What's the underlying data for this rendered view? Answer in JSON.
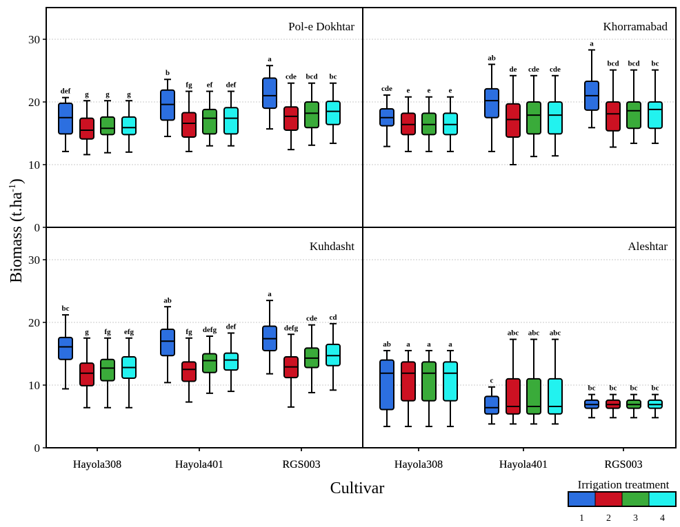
{
  "colors": {
    "t1": "#2c6fe0",
    "t2": "#cc1122",
    "t3": "#3aab3a",
    "t4": "#22f2ef",
    "grid": "#c8c8c8",
    "axis": "#000000"
  },
  "chart_data": {
    "type": "box",
    "xlabel": "Cultivar",
    "ylabel_main": "Biomass (t.ha",
    "ylabel_sup": "-1",
    "ylabel_end": ")",
    "ylim": [
      0,
      35
    ],
    "yticks": [
      0,
      10,
      20,
      30
    ],
    "grid": "horizontal dotted at 10, 20, 30",
    "categories": [
      "Hayola308",
      "Hayola401",
      "RGS003"
    ],
    "legend": {
      "title": "Irrigation treatment",
      "labels": [
        "1",
        "2",
        "3",
        "4"
      ],
      "placement": "bottom-right"
    },
    "panels": [
      {
        "title": "Pol-e Dokhtar",
        "groups": [
          {
            "cultivar": "Hayola308",
            "boxes": [
              {
                "t": 1,
                "min": 12.1,
                "q1": 14.9,
                "med": 17.5,
                "q3": 19.8,
                "max": 20.7,
                "letter": "def"
              },
              {
                "t": 2,
                "min": 11.6,
                "q1": 14.1,
                "med": 15.5,
                "q3": 17.4,
                "max": 20.2,
                "letter": "g"
              },
              {
                "t": 3,
                "min": 11.9,
                "q1": 14.8,
                "med": 15.8,
                "q3": 17.6,
                "max": 20.2,
                "letter": "g"
              },
              {
                "t": 4,
                "min": 12.0,
                "q1": 14.8,
                "med": 15.9,
                "q3": 17.6,
                "max": 20.2,
                "letter": "g"
              }
            ]
          },
          {
            "cultivar": "Hayola401",
            "boxes": [
              {
                "t": 1,
                "min": 14.5,
                "q1": 17.1,
                "med": 19.6,
                "q3": 21.9,
                "max": 23.6,
                "letter": "b"
              },
              {
                "t": 2,
                "min": 12.1,
                "q1": 14.4,
                "med": 16.6,
                "q3": 18.3,
                "max": 21.7,
                "letter": "fg"
              },
              {
                "t": 3,
                "min": 13.0,
                "q1": 14.9,
                "med": 17.4,
                "q3": 18.8,
                "max": 21.7,
                "letter": "ef"
              },
              {
                "t": 4,
                "min": 13.0,
                "q1": 14.9,
                "med": 17.4,
                "q3": 19.1,
                "max": 21.7,
                "letter": "def"
              }
            ]
          },
          {
            "cultivar": "RGS003",
            "boxes": [
              {
                "t": 1,
                "min": 15.7,
                "q1": 19.0,
                "med": 21.0,
                "q3": 23.8,
                "max": 25.8,
                "letter": "a"
              },
              {
                "t": 2,
                "min": 12.4,
                "q1": 15.5,
                "med": 17.7,
                "q3": 19.2,
                "max": 23.0,
                "letter": "cde"
              },
              {
                "t": 3,
                "min": 13.1,
                "q1": 15.9,
                "med": 18.2,
                "q3": 20.0,
                "max": 23.0,
                "letter": "bcd"
              },
              {
                "t": 4,
                "min": 13.4,
                "q1": 16.4,
                "med": 18.5,
                "q3": 20.1,
                "max": 23.0,
                "letter": "bc"
              }
            ]
          }
        ]
      },
      {
        "title": "Khorramabad",
        "groups": [
          {
            "cultivar": "Hayola308",
            "boxes": [
              {
                "t": 1,
                "min": 12.9,
                "q1": 16.2,
                "med": 17.5,
                "q3": 18.9,
                "max": 21.1,
                "letter": "cde"
              },
              {
                "t": 2,
                "min": 12.1,
                "q1": 14.8,
                "med": 16.4,
                "q3": 18.2,
                "max": 20.8,
                "letter": "e"
              },
              {
                "t": 3,
                "min": 12.1,
                "q1": 14.8,
                "med": 16.4,
                "q3": 18.2,
                "max": 20.8,
                "letter": "e"
              },
              {
                "t": 4,
                "min": 12.1,
                "q1": 14.8,
                "med": 16.4,
                "q3": 18.2,
                "max": 20.8,
                "letter": "e"
              }
            ]
          },
          {
            "cultivar": "Hayola401",
            "boxes": [
              {
                "t": 1,
                "min": 12.1,
                "q1": 17.5,
                "med": 20.2,
                "q3": 22.1,
                "max": 26.0,
                "letter": "ab"
              },
              {
                "t": 2,
                "min": 10.0,
                "q1": 14.4,
                "med": 17.2,
                "q3": 19.7,
                "max": 24.2,
                "letter": "de"
              },
              {
                "t": 3,
                "min": 11.3,
                "q1": 14.9,
                "med": 17.9,
                "q3": 20.0,
                "max": 24.2,
                "letter": "cde"
              },
              {
                "t": 4,
                "min": 11.4,
                "q1": 14.9,
                "med": 17.9,
                "q3": 20.0,
                "max": 24.2,
                "letter": "cde"
              }
            ]
          },
          {
            "cultivar": "RGS003",
            "boxes": [
              {
                "t": 1,
                "min": 15.9,
                "q1": 18.7,
                "med": 21.0,
                "q3": 23.3,
                "max": 28.3,
                "letter": "a"
              },
              {
                "t": 2,
                "min": 12.8,
                "q1": 15.4,
                "med": 18.1,
                "q3": 20.0,
                "max": 25.1,
                "letter": "bcd"
              },
              {
                "t": 3,
                "min": 13.4,
                "q1": 15.8,
                "med": 18.6,
                "q3": 20.0,
                "max": 25.1,
                "letter": "bcd"
              },
              {
                "t": 4,
                "min": 13.4,
                "q1": 15.8,
                "med": 18.8,
                "q3": 20.0,
                "max": 25.1,
                "letter": "bc"
              }
            ]
          }
        ]
      },
      {
        "title": "Kuhdasht",
        "groups": [
          {
            "cultivar": "Hayola308",
            "boxes": [
              {
                "t": 1,
                "min": 9.4,
                "q1": 14.1,
                "med": 16.1,
                "q3": 17.6,
                "max": 21.2,
                "letter": "bc"
              },
              {
                "t": 2,
                "min": 6.4,
                "q1": 9.9,
                "med": 11.9,
                "q3": 13.5,
                "max": 17.5,
                "letter": "g"
              },
              {
                "t": 3,
                "min": 6.4,
                "q1": 10.7,
                "med": 12.7,
                "q3": 14.1,
                "max": 17.5,
                "letter": "fg"
              },
              {
                "t": 4,
                "min": 6.4,
                "q1": 11.1,
                "med": 12.8,
                "q3": 14.5,
                "max": 17.5,
                "letter": "efg"
              }
            ]
          },
          {
            "cultivar": "Hayola401",
            "boxes": [
              {
                "t": 1,
                "min": 10.4,
                "q1": 14.7,
                "med": 17.0,
                "q3": 18.9,
                "max": 22.5,
                "letter": "ab"
              },
              {
                "t": 2,
                "min": 7.3,
                "q1": 10.6,
                "med": 12.5,
                "q3": 13.7,
                "max": 17.5,
                "letter": "fg"
              },
              {
                "t": 3,
                "min": 8.7,
                "q1": 12.0,
                "med": 13.9,
                "q3": 15.0,
                "max": 17.8,
                "letter": "defg"
              },
              {
                "t": 4,
                "min": 9.0,
                "q1": 12.4,
                "med": 14.0,
                "q3": 15.1,
                "max": 18.3,
                "letter": "def"
              }
            ]
          },
          {
            "cultivar": "RGS003",
            "boxes": [
              {
                "t": 1,
                "min": 11.8,
                "q1": 15.5,
                "med": 17.4,
                "q3": 19.4,
                "max": 23.5,
                "letter": "a"
              },
              {
                "t": 2,
                "min": 6.5,
                "q1": 11.2,
                "med": 12.9,
                "q3": 14.5,
                "max": 18.1,
                "letter": "defg"
              },
              {
                "t": 3,
                "min": 8.8,
                "q1": 12.8,
                "med": 14.3,
                "q3": 15.9,
                "max": 19.6,
                "letter": "cde"
              },
              {
                "t": 4,
                "min": 9.2,
                "q1": 13.1,
                "med": 14.7,
                "q3": 16.5,
                "max": 19.8,
                "letter": "cd"
              }
            ]
          }
        ]
      },
      {
        "title": "Aleshtar",
        "groups": [
          {
            "cultivar": "Hayola308",
            "boxes": [
              {
                "t": 1,
                "min": 3.4,
                "q1": 6.1,
                "med": 11.9,
                "q3": 14.0,
                "max": 15.5,
                "letter": "ab"
              },
              {
                "t": 2,
                "min": 3.4,
                "q1": 7.5,
                "med": 11.9,
                "q3": 13.7,
                "max": 15.5,
                "letter": "a"
              },
              {
                "t": 3,
                "min": 3.4,
                "q1": 7.5,
                "med": 11.9,
                "q3": 13.7,
                "max": 15.5,
                "letter": "a"
              },
              {
                "t": 4,
                "min": 3.4,
                "q1": 7.5,
                "med": 11.9,
                "q3": 13.7,
                "max": 15.5,
                "letter": "a"
              }
            ]
          },
          {
            "cultivar": "Hayola401",
            "boxes": [
              {
                "t": 1,
                "min": 3.8,
                "q1": 5.4,
                "med": 6.4,
                "q3": 8.2,
                "max": 9.7,
                "letter": "c"
              },
              {
                "t": 2,
                "min": 3.8,
                "q1": 5.4,
                "med": 6.6,
                "q3": 11.0,
                "max": 17.3,
                "letter": "abc"
              },
              {
                "t": 3,
                "min": 3.8,
                "q1": 5.4,
                "med": 6.6,
                "q3": 11.0,
                "max": 17.3,
                "letter": "abc"
              },
              {
                "t": 4,
                "min": 3.8,
                "q1": 5.4,
                "med": 6.6,
                "q3": 11.0,
                "max": 17.3,
                "letter": "abc"
              }
            ]
          },
          {
            "cultivar": "RGS003",
            "boxes": [
              {
                "t": 1,
                "min": 4.8,
                "q1": 6.3,
                "med": 6.9,
                "q3": 7.6,
                "max": 8.5,
                "letter": "bc"
              },
              {
                "t": 2,
                "min": 4.8,
                "q1": 6.3,
                "med": 6.9,
                "q3": 7.6,
                "max": 8.5,
                "letter": "bc"
              },
              {
                "t": 3,
                "min": 4.8,
                "q1": 6.3,
                "med": 6.9,
                "q3": 7.6,
                "max": 8.5,
                "letter": "bc"
              },
              {
                "t": 4,
                "min": 4.8,
                "q1": 6.3,
                "med": 6.9,
                "q3": 7.6,
                "max": 8.5,
                "letter": "bc"
              }
            ]
          }
        ]
      }
    ]
  }
}
